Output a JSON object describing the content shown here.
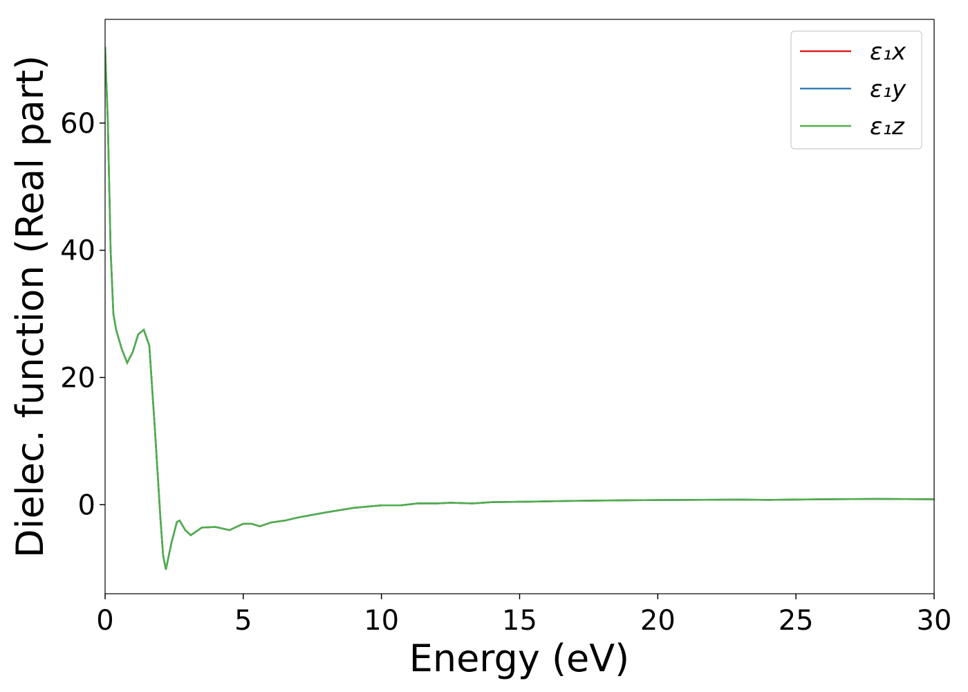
{
  "chart_data": {
    "type": "line",
    "xlabel": "Energy (eV)",
    "ylabel": "Dielec. function (Real part)",
    "x": [
      0,
      0.1,
      0.2,
      0.3,
      0.4,
      0.5,
      0.6,
      0.8,
      1.0,
      1.2,
      1.4,
      1.6,
      1.8,
      2.0,
      2.1,
      2.2,
      2.4,
      2.6,
      2.7,
      2.9,
      3.1,
      3.3,
      3.5,
      4.0,
      4.5,
      5.0,
      5.3,
      5.6,
      6.0,
      6.5,
      7,
      8,
      9,
      10,
      10.7,
      11.3,
      12,
      12.5,
      13.3,
      14,
      15,
      17,
      19,
      21,
      23,
      24,
      26,
      28,
      30
    ],
    "series": [
      {
        "name": "ε₁x",
        "color": "#e41a1c",
        "values": [
          72,
          60,
          40,
          30,
          27.5,
          26,
          24.5,
          22.3,
          24,
          26.8,
          27.5,
          25,
          12,
          -2,
          -8,
          -10.2,
          -6,
          -2.7,
          -2.5,
          -4,
          -4.8,
          -4.2,
          -3.6,
          -3.5,
          -4,
          -3,
          -3,
          -3.4,
          -2.8,
          -2.5,
          -2,
          -1.2,
          -0.5,
          -0.1,
          -0.1,
          0.2,
          0.2,
          0.3,
          0.2,
          0.4,
          0.45,
          0.6,
          0.7,
          0.75,
          0.8,
          0.75,
          0.85,
          0.9,
          0.85
        ]
      },
      {
        "name": "ε₁y",
        "color": "#377eb8",
        "values": [
          72,
          60,
          40,
          30,
          27.5,
          26,
          24.5,
          22.3,
          24,
          26.8,
          27.5,
          25,
          12,
          -2,
          -8,
          -10.2,
          -6,
          -2.7,
          -2.5,
          -4,
          -4.8,
          -4.2,
          -3.6,
          -3.5,
          -4,
          -3,
          -3,
          -3.4,
          -2.8,
          -2.5,
          -2,
          -1.2,
          -0.5,
          -0.1,
          -0.1,
          0.2,
          0.2,
          0.3,
          0.2,
          0.4,
          0.45,
          0.6,
          0.7,
          0.75,
          0.8,
          0.75,
          0.85,
          0.9,
          0.85
        ]
      },
      {
        "name": "ε₁z",
        "color": "#4daf4a",
        "values": [
          72,
          60,
          40,
          30,
          27.5,
          26,
          24.5,
          22.3,
          24,
          26.8,
          27.5,
          25,
          12,
          -2,
          -8,
          -10.2,
          -6,
          -2.7,
          -2.5,
          -4,
          -4.8,
          -4.2,
          -3.6,
          -3.5,
          -4,
          -3,
          -3,
          -3.4,
          -2.8,
          -2.5,
          -2,
          -1.2,
          -0.5,
          -0.1,
          -0.1,
          0.2,
          0.2,
          0.3,
          0.2,
          0.4,
          0.45,
          0.6,
          0.7,
          0.75,
          0.8,
          0.75,
          0.85,
          0.9,
          0.85
        ]
      }
    ],
    "xlim": [
      0,
      30
    ],
    "xticks": [
      0,
      5,
      10,
      15,
      20,
      25,
      30
    ],
    "ylim": [
      -14,
      76.3
    ],
    "yticks": [
      0,
      20,
      40,
      60
    ],
    "legend": "upper right"
  }
}
